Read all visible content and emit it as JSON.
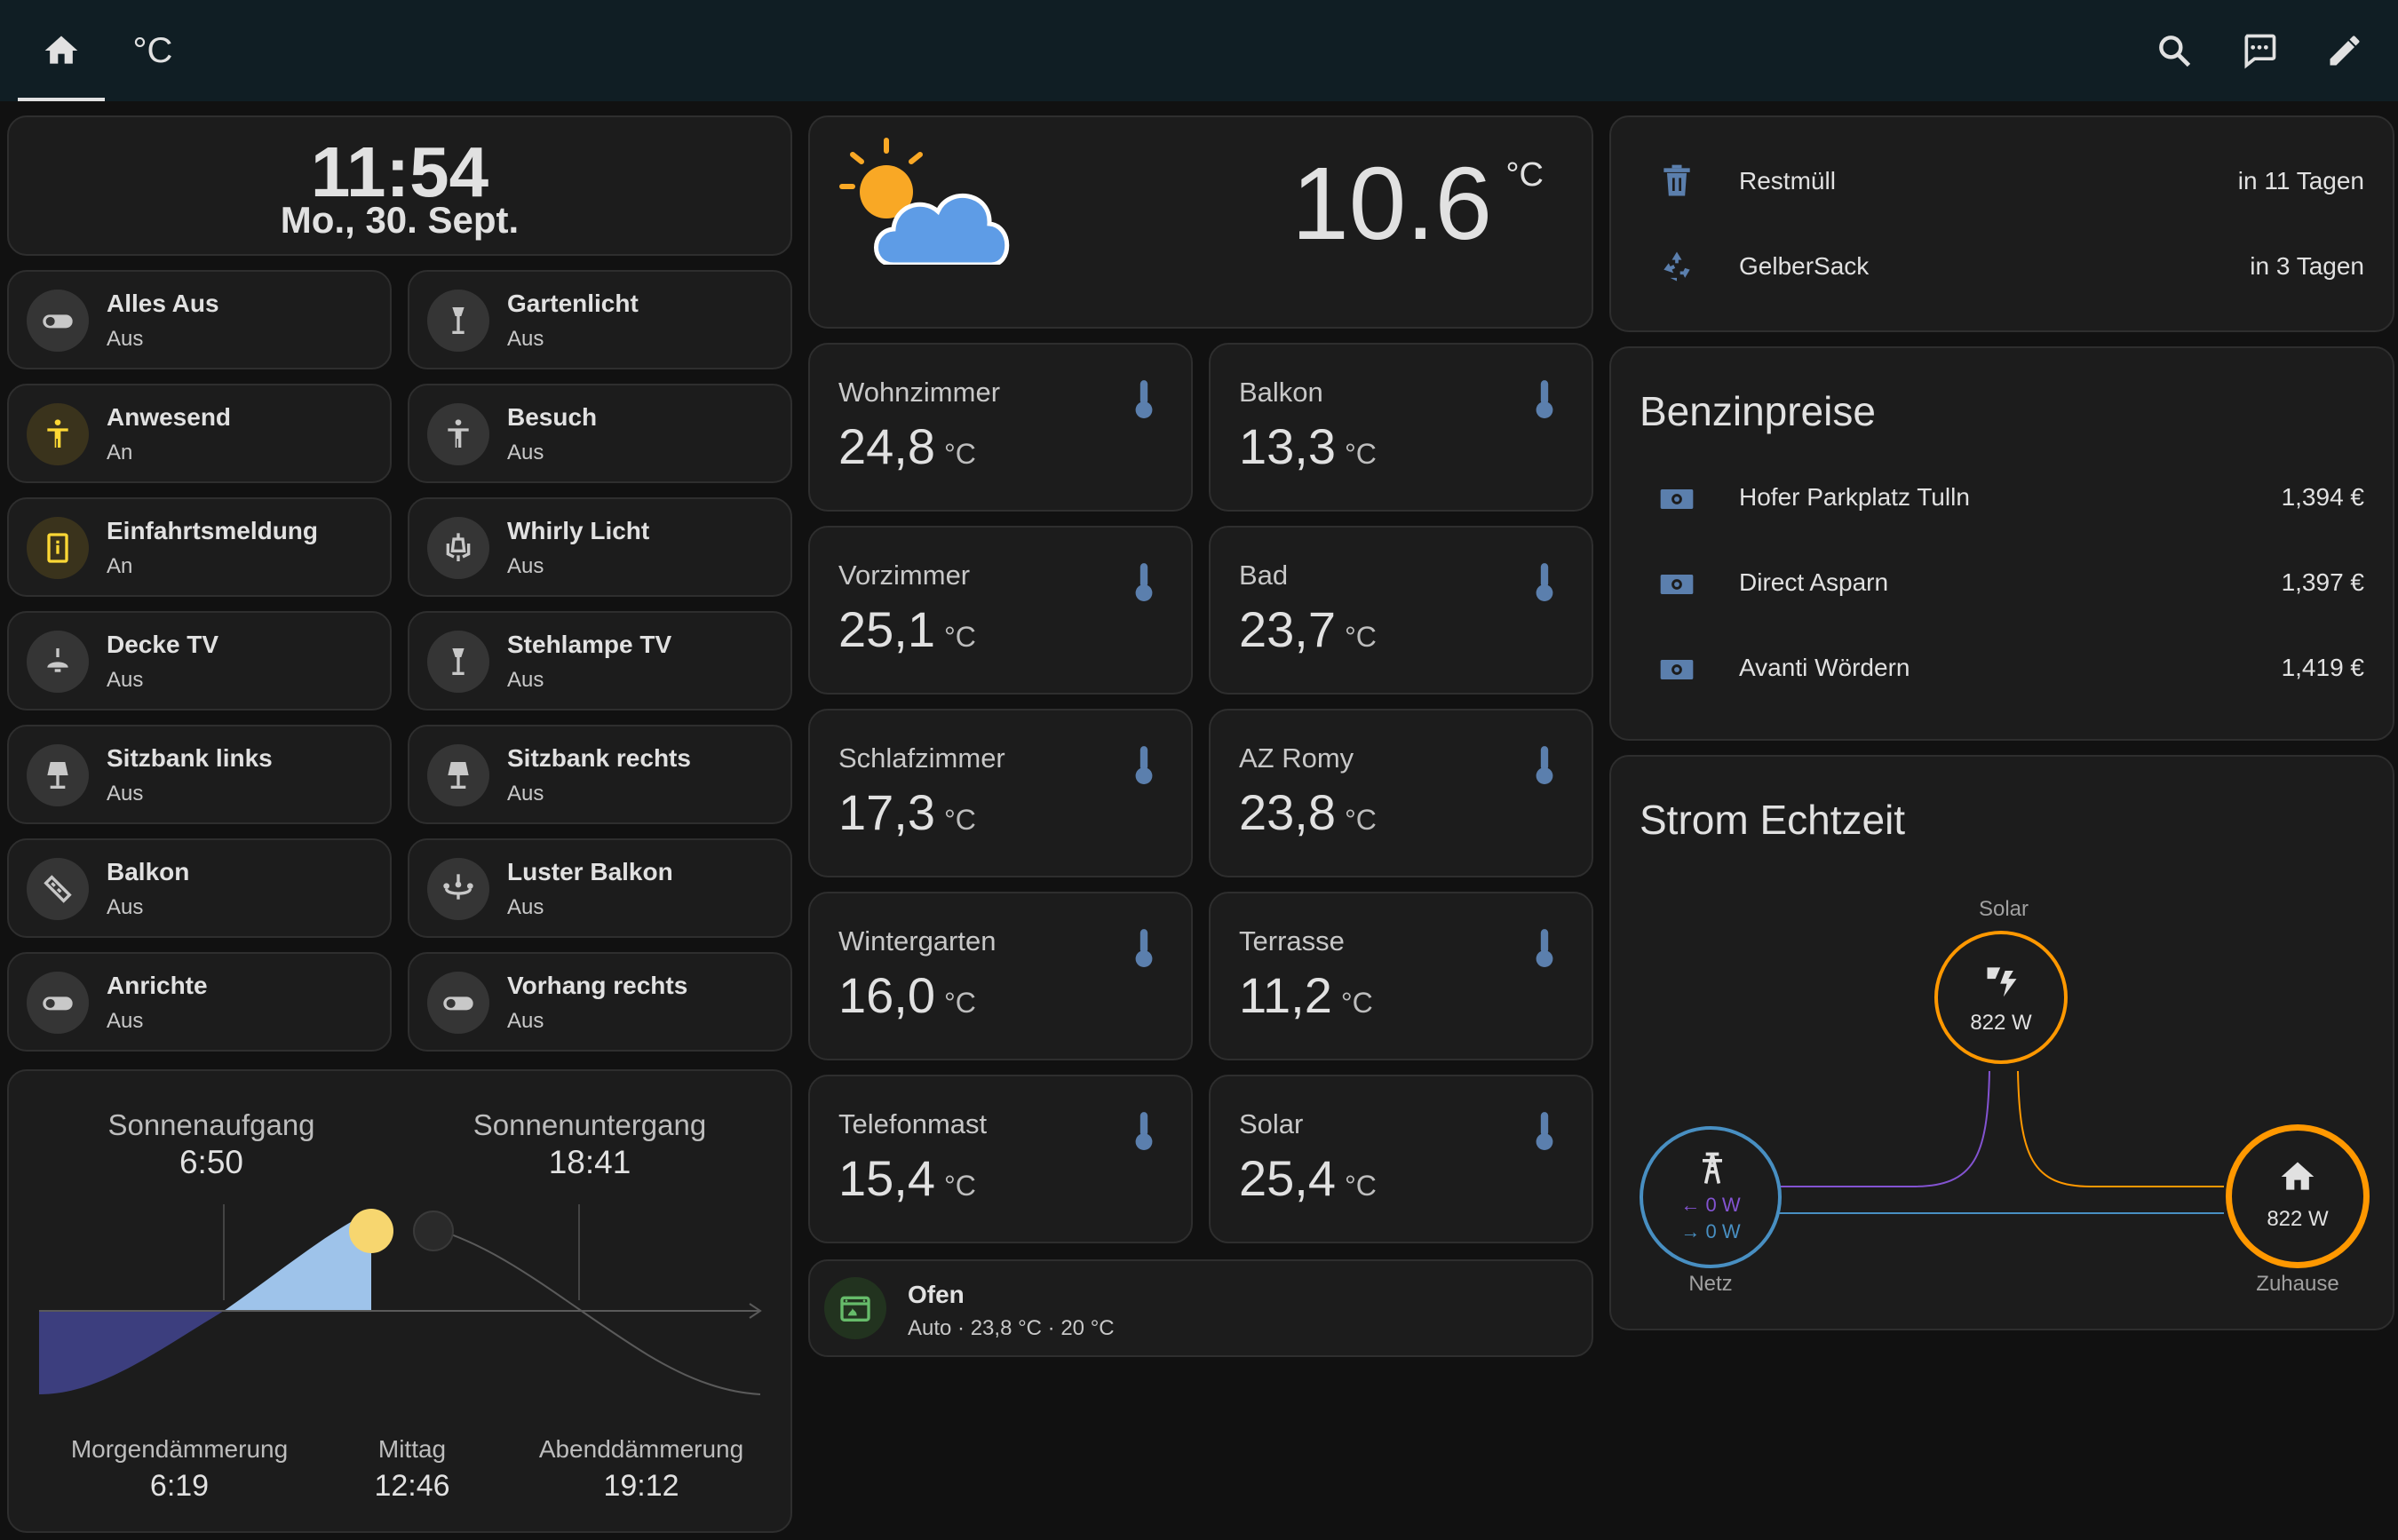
{
  "toolbar": {
    "tab_temp_label": "°C"
  },
  "clock": {
    "time": "11:54",
    "date": "Mo., 30. Sept."
  },
  "tiles": [
    {
      "name": "Alles Aus",
      "state": "Aus",
      "icon": "toggle-switch-icon"
    },
    {
      "name": "Gartenlicht",
      "state": "Aus",
      "icon": "floor-lamp-icon"
    },
    {
      "name": "Anwesend",
      "state": "An",
      "icon": "person-icon"
    },
    {
      "name": "Besuch",
      "state": "Aus",
      "icon": "person-icon"
    },
    {
      "name": "Einfahrtsmeldung",
      "state": "An",
      "icon": "gate-alert-icon"
    },
    {
      "name": "Whirly Licht",
      "state": "Aus",
      "icon": "outdoor-lamp-icon"
    },
    {
      "name": "Decke TV",
      "state": "Aus",
      "icon": "ceiling-light-icon"
    },
    {
      "name": "Stehlampe TV",
      "state": "Aus",
      "icon": "floor-lamp-icon"
    },
    {
      "name": "Sitzbank links",
      "state": "Aus",
      "icon": "lamp-icon"
    },
    {
      "name": "Sitzbank rechts",
      "state": "Aus",
      "icon": "lamp-icon"
    },
    {
      "name": "Balkon",
      "state": "Aus",
      "icon": "led-strip-icon"
    },
    {
      "name": "Luster Balkon",
      "state": "Aus",
      "icon": "chandelier-icon"
    },
    {
      "name": "Anrichte",
      "state": "Aus",
      "icon": "toggle-switch-icon"
    },
    {
      "name": "Vorhang rechts",
      "state": "Aus",
      "icon": "toggle-switch-icon"
    }
  ],
  "sun": {
    "sunrise_label": "Sonnenaufgang",
    "sunrise": "6:50",
    "sunset_label": "Sonnenuntergang",
    "sunset": "18:41",
    "dawn_label": "Morgendämmerung",
    "dawn": "6:19",
    "noon_label": "Mittag",
    "noon": "12:46",
    "dusk_label": "Abenddämmerung",
    "dusk": "19:12"
  },
  "weather": {
    "temp": "10.6",
    "unit": "°C",
    "icon": "partly-cloudy-icon"
  },
  "sensors": [
    {
      "name": "Wohnzimmer",
      "value": "24,8",
      "unit": "°C"
    },
    {
      "name": "Balkon",
      "value": "13,3",
      "unit": "°C"
    },
    {
      "name": "Vorzimmer",
      "value": "25,1",
      "unit": "°C"
    },
    {
      "name": "Bad",
      "value": "23,7",
      "unit": "°C"
    },
    {
      "name": "Schlafzimmer",
      "value": "17,3",
      "unit": "°C"
    },
    {
      "name": "AZ Romy",
      "value": "23,8",
      "unit": "°C"
    },
    {
      "name": "Wintergarten",
      "value": "16,0",
      "unit": "°C"
    },
    {
      "name": "Terrasse",
      "value": "11,2",
      "unit": "°C"
    },
    {
      "name": "Telefonmast",
      "value": "15,4",
      "unit": "°C"
    },
    {
      "name": "Solar",
      "value": "25,4",
      "unit": "°C"
    }
  ],
  "thermostat": {
    "name": "Ofen",
    "status": "Auto · 23,8 °C · 20 °C"
  },
  "waste": [
    {
      "name": "Restmüll",
      "value": "in 11 Tagen",
      "icon": "trash-can-icon"
    },
    {
      "name": "GelberSack",
      "value": "in 3 Tagen",
      "icon": "recycle-icon"
    }
  ],
  "fuel": {
    "title": "Benzinpreise",
    "items": [
      {
        "name": "Hofer Parkplatz Tulln",
        "value": "1,394 €"
      },
      {
        "name": "Direct Asparn",
        "value": "1,397 €"
      },
      {
        "name": "Avanti Wördern",
        "value": "1,419 €"
      }
    ]
  },
  "energy": {
    "title": "Strom Echtzeit",
    "solar_label": "Solar",
    "solar_value": "822 W",
    "grid_label": "Netz",
    "grid_in": "0 W",
    "grid_out": "0 W",
    "home_label": "Zuhause",
    "home_value": "822 W",
    "colors": {
      "solar": "#ff9800",
      "grid": "#488fc2",
      "home": "#ff9800",
      "grid_return": "#8353d1"
    }
  }
}
